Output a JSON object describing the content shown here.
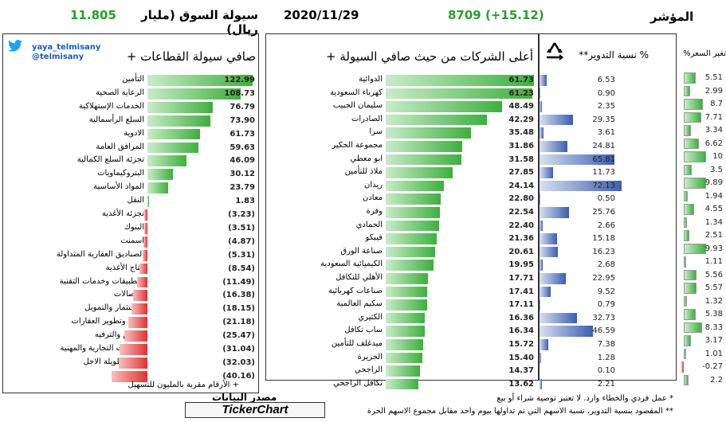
{
  "header": {
    "index_label": "المؤشر",
    "index_value": "8709",
    "index_change": "(+15.12)",
    "date": "2020/11/29",
    "liquidity_label": "سيولة السوق (مليار ريال)",
    "liquidity_value": "11.805"
  },
  "colors": {
    "green": "#3fae3f",
    "red": "#e23030",
    "blue": "#3a5eb0",
    "header_green": "#2a9d2a"
  },
  "icons": {
    "twitter": "twitter-icon",
    "recycle": "recycle-icon"
  },
  "twitter": {
    "handle1": "yaya_telmisany",
    "handle2": "@telmisany"
  },
  "sectors_panel": {
    "title": "صافي سيولة القطاعات +"
  },
  "companies_panel": {
    "title": "أعلى الشركات من حيث صافي السيولة +"
  },
  "turnover_panel": {
    "title": "% نسبة التدوير**"
  },
  "price_panel": {
    "title": "تغير السعر%"
  },
  "chart_data": [
    {
      "type": "bar",
      "title": "صافي سيولة القطاعات +",
      "categories": [
        "التأمين",
        "الرعاية الصحية",
        "الخدمات الإستهلاكية",
        "السلع الرأسمالية",
        "الادوية",
        "المرافق العامة",
        "تجزئة السلع الكمالية",
        "البتروكيماويات",
        "المواد الأساسية",
        "النقل",
        "تجزئة الأغذية",
        "البنوك",
        "اسمنت",
        "الصناديق العقارية المتداولة",
        "إنتاج الأغذية",
        "التطبيقات وخدمات التقنية",
        "الإتصالات",
        "الإستثمار والتمويل",
        "إدارة وتطوير العقارات",
        "الاعلام والترفيه",
        "الخدمات التجارية والمهنية",
        "السلع طويلة الاجل",
        "الطاقة"
      ],
      "values": [
        122.99,
        108.73,
        76.79,
        73.9,
        61.73,
        59.63,
        46.09,
        30.12,
        23.79,
        1.83,
        -3.23,
        -3.51,
        -4.87,
        -5.31,
        -8.54,
        -11.49,
        -16.38,
        -18.15,
        -21.18,
        -25.47,
        -31.04,
        -32.03,
        -40.16
      ],
      "labels": [
        "122.99",
        "108.73",
        "76.79",
        "73.90",
        "61.73",
        "59.63",
        "46.09",
        "30.12",
        "23.79",
        "1.83",
        "(3.23)",
        "(3.51)",
        "(4.87)",
        "(5.31)",
        "(8.54)",
        "(11.49)",
        "(16.38)",
        "(18.15)",
        "(21.18)",
        "(25.47)",
        "(31.04)",
        "(32.03)",
        "(40.16)"
      ]
    },
    {
      "type": "bar",
      "title": "أعلى الشركات من حيث صافي السيولة +",
      "categories": [
        "الدوائية",
        "كهرباء السعودية",
        "سليمان الحبيب",
        "الصادرات",
        "سرا",
        "مجموعة الحكير",
        "ابو معطي",
        "ملاذ للتأمين",
        "ريدان",
        "معادن",
        "وفرة",
        "الحمادي",
        "فيبكو",
        "صناعة الورق",
        "الكيميائية السعودية",
        "الأهلي للتكافل",
        "صناعات كهربائية",
        "سكيم العالمية",
        "الكثيري",
        "ساب تكافل",
        "ميدغلف للتأمين",
        "الجزيرة",
        "الراجحي",
        "تكافل الراجحي"
      ],
      "values": [
        61.73,
        61.23,
        48.49,
        42.29,
        35.48,
        31.86,
        31.58,
        27.85,
        24.14,
        22.8,
        22.54,
        22.4,
        21.36,
        20.61,
        19.95,
        17.71,
        17.41,
        17.11,
        16.36,
        16.34,
        15.72,
        15.4,
        14.37,
        13.62
      ],
      "labels": [
        "61.73",
        "61.23",
        "48.49",
        "42.29",
        "35.48",
        "31.86",
        "31.58",
        "27.85",
        "24.14",
        "22.80",
        "22.54",
        "22.40",
        "21.36",
        "20.61",
        "19.95",
        "17.71",
        "17.41",
        "17.11",
        "16.36",
        "16.34",
        "15.72",
        "15.40",
        "14.37",
        "13.62"
      ]
    },
    {
      "type": "bar",
      "title": "% نسبة التدوير**",
      "values": [
        6.53,
        0.9,
        2.35,
        29.35,
        3.61,
        24.81,
        65.81,
        11.73,
        72.13,
        0.5,
        25.76,
        2.66,
        15.18,
        16.23,
        2.68,
        22.95,
        9.52,
        0.79,
        32.73,
        46.59,
        7.38,
        1.28,
        0.1,
        2.21
      ],
      "labels": [
        "6.53",
        "0.90",
        "2.35",
        "29.35",
        "3.61",
        "24.81",
        "65.81",
        "11.73",
        "72.13",
        "0.50",
        "25.76",
        "2.66",
        "15.18",
        "16.23",
        "2.68",
        "22.95",
        "9.52",
        "0.79",
        "32.73",
        "46.59",
        "7.38",
        "1.28",
        "0.10",
        "2.21"
      ]
    },
    {
      "type": "bar",
      "title": "تغير السعر%",
      "values": [
        5.51,
        2.99,
        8.7,
        7.71,
        3.34,
        6.62,
        10,
        3.5,
        9.89,
        1.94,
        4.55,
        1.34,
        2.51,
        9.93,
        1.11,
        5.56,
        5.57,
        1.32,
        5.38,
        8.33,
        3.17,
        1.01,
        -0.27,
        2.2
      ],
      "labels": [
        "5.51",
        "2.99",
        "8.7",
        "7.71",
        "3.34",
        "6.62",
        "10",
        "3.5",
        "9.89",
        "1.94",
        "4.55",
        "1.34",
        "2.51",
        "9.93",
        "1.11",
        "5.56",
        "5.57",
        "1.32",
        "5.38",
        "8.33",
        "3.17",
        "1.01",
        "-0.27",
        "2.2"
      ]
    }
  ],
  "footer": {
    "note_sectors": "+ الأرقام مقربة بالمليون للتسهيل",
    "source_label": "مصدر البيانات",
    "brand": "TickerChart",
    "note1": "* عمل فردي والخطاء وارد. لا تعتبر توصية شراء أو بيع",
    "note2": "** المقصود بنسبة التدوير، نسبة الاسهم التي تم تداولها بيوم واحد مقابل مجموع الاسهم الحرة"
  }
}
